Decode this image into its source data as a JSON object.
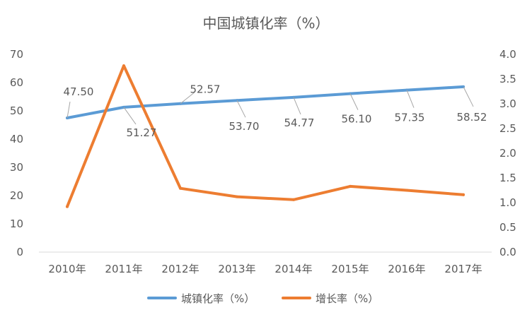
{
  "chart_data": {
    "type": "line",
    "title": "中国城镇化率（%）",
    "categories": [
      "2010年",
      "2011年",
      "2012年",
      "2013年",
      "2014年",
      "2015年",
      "2016年",
      "2017年"
    ],
    "series": [
      {
        "name": "城镇化率（%）",
        "axis": "left",
        "color": "#5B9BD5",
        "values": [
          47.5,
          51.27,
          52.57,
          53.7,
          54.77,
          56.1,
          57.35,
          58.52
        ],
        "data_labels": [
          "47.50",
          "51.27",
          "52.57",
          "53.70",
          "54.77",
          "56.10",
          "57.35",
          "58.52"
        ]
      },
      {
        "name": "增长率（%）",
        "axis": "right",
        "color": "#ED7D31",
        "values": [
          0.92,
          3.77,
          1.29,
          1.12,
          1.06,
          1.33,
          1.25,
          1.16
        ]
      }
    ],
    "y_left": {
      "ylim": [
        0,
        70
      ],
      "ticks": [
        "0",
        "10",
        "20",
        "30",
        "40",
        "50",
        "60",
        "70"
      ]
    },
    "y_right": {
      "ylim": [
        0,
        4
      ],
      "ticks": [
        "0.0",
        "0.5",
        "1.0",
        "1.5",
        "2.0",
        "2.5",
        "3.0",
        "3.5",
        "4.0"
      ]
    },
    "grid": false,
    "legend_position": "bottom"
  }
}
